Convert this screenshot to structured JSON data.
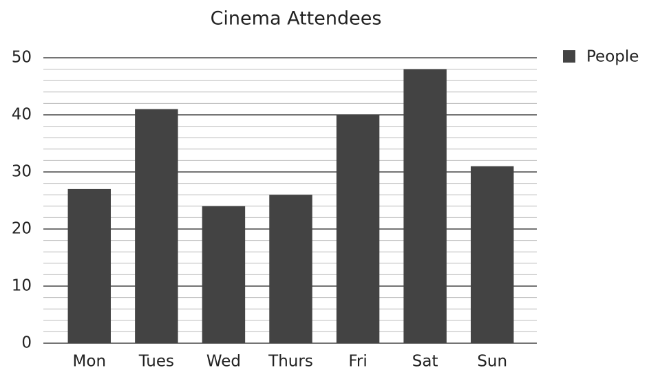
{
  "chart_data": {
    "type": "bar",
    "title": "Cinema Attendees",
    "categories": [
      "Mon",
      "Tues",
      "Wed",
      "Thurs",
      "Fri",
      "Sat",
      "Sun"
    ],
    "series": [
      {
        "name": "People",
        "color": "#434343",
        "values": [
          27,
          41,
          24,
          26,
          40,
          48,
          31
        ]
      }
    ],
    "ylim": [
      0,
      50
    ],
    "yticks": [
      0,
      10,
      20,
      30,
      40,
      50
    ],
    "minor_yticks": [
      2,
      4,
      6,
      8,
      12,
      14,
      16,
      18,
      22,
      24,
      26,
      28,
      32,
      34,
      36,
      38,
      42,
      44,
      46,
      48
    ],
    "grid": true,
    "legend": "top-right"
  }
}
